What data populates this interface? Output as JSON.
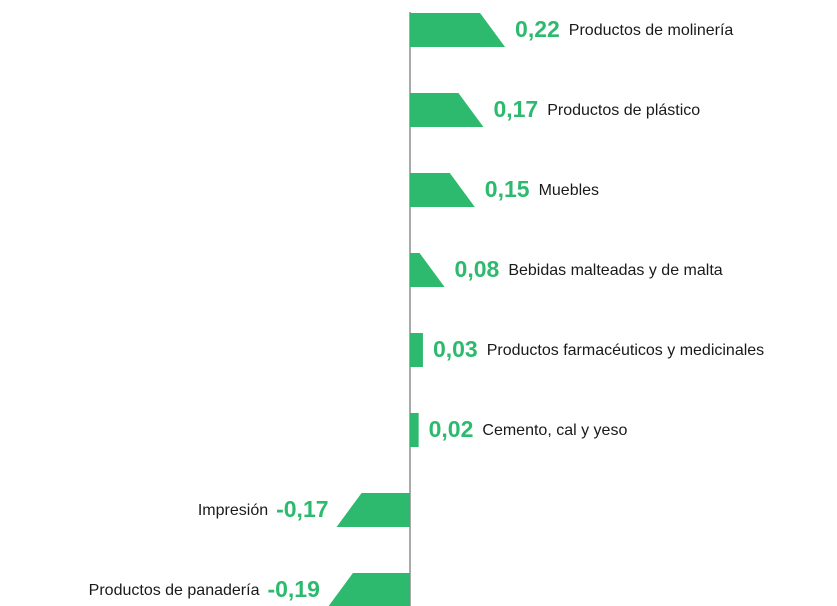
{
  "chart_data": {
    "type": "bar",
    "orientation": "horizontal",
    "categories": [
      "Productos de molinería",
      "Productos de plástico",
      "Muebles",
      "Bebidas malteadas y de malta",
      "Productos farmacéuticos y medicinales",
      "Cemento, cal y yeso",
      "Impresión",
      "Productos de panadería"
    ],
    "values": [
      0.22,
      0.17,
      0.15,
      0.08,
      0.03,
      0.02,
      -0.17,
      -0.19
    ],
    "value_labels": [
      "0,22",
      "0,17",
      "0,15",
      "0,08",
      "0,03",
      "0,02",
      "-0,17",
      "-0,19"
    ],
    "color": "#2dba6e"
  }
}
